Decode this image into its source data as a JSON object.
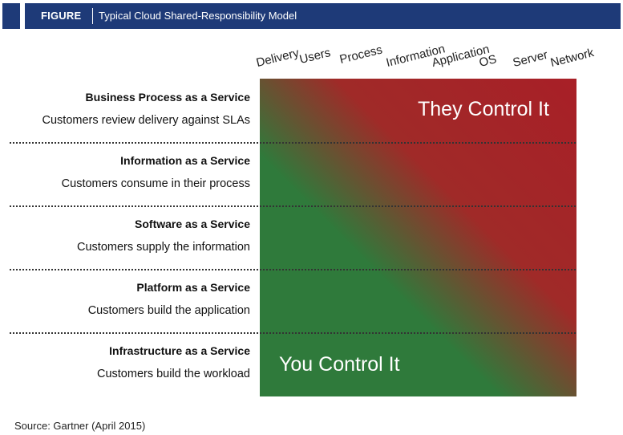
{
  "header": {
    "figure_label": "FIGURE",
    "title": "Typical Cloud Shared-Responsibility Model"
  },
  "columns": [
    "Delivery",
    "Users",
    "Process",
    "Information",
    "Application",
    "OS",
    "Server",
    "Network"
  ],
  "matrix": {
    "top_label": "They Control It",
    "bottom_label": "You Control It",
    "colors": {
      "green": "#2f7a3b",
      "red": "#a81f27"
    }
  },
  "rows": [
    {
      "title": "Business Process as a Service",
      "desc": "Customers review delivery against SLAs"
    },
    {
      "title": "Information as a Service",
      "desc": "Customers consume in their process"
    },
    {
      "title": "Software as a Service",
      "desc": "Customers supply the information"
    },
    {
      "title": "Platform as a Service",
      "desc": "Customers build the application"
    },
    {
      "title": "Infrastructure as a Service",
      "desc": "Customers build the workload"
    }
  ],
  "source": "Source: Gartner (April 2015)"
}
